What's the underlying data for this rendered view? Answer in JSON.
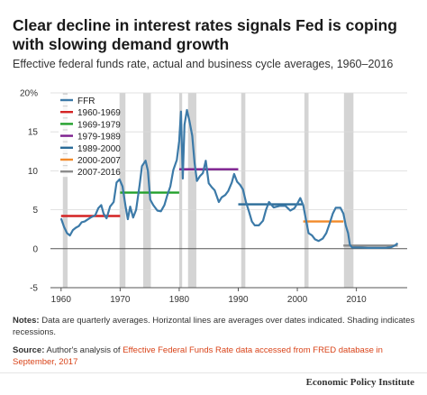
{
  "title": "Clear decline in interest rates signals Fed is coping with slowing demand growth",
  "subtitle": "Effective federal funds rate, actual and business cycle averages, 1960–2016",
  "notes": {
    "label": "Notes:",
    "text": " Data are quarterly averages. Horizontal lines are averages over dates indicated. Shading indicates recessions."
  },
  "source": {
    "label": "Source:",
    "prefix": " Author's analysis of ",
    "link_text": "Effective Federal Funds Rate data accessed from FRED database in September, 2017"
  },
  "brand": "Economic Policy Institute",
  "colors": {
    "ffr": "#3c7aa8",
    "p1960": "#d42323",
    "p1969": "#22a02c",
    "p1979": "#7c1e8e",
    "p1989": "#2a6b98",
    "p2000": "#f28a2a",
    "p2007": "#8c8c8c",
    "recession": "#d4d4d4",
    "grid": "#d9d9d9",
    "axis": "#555555"
  },
  "chart_data": {
    "type": "line",
    "xlim": [
      1958.2,
      2018.6
    ],
    "ylim": [
      -5,
      20
    ],
    "y_ticks": [
      -5,
      0,
      5,
      10,
      15,
      20
    ],
    "y_tick_labels": [
      "-5",
      "0",
      "5",
      "10",
      "15",
      "20%"
    ],
    "x_ticks": [
      1960,
      1970,
      1980,
      1990,
      2000,
      2010
    ],
    "x_tick_labels": [
      "1960",
      "1970",
      "1980",
      "1990",
      "2000",
      "2010"
    ],
    "grid": "horizontal",
    "legend_position": "top-left",
    "recessions": [
      [
        1960.3,
        1961.1
      ],
      [
        1969.9,
        1970.9
      ],
      [
        1973.9,
        1975.2
      ],
      [
        1980.0,
        1980.5
      ],
      [
        1981.5,
        1982.9
      ],
      [
        1990.5,
        1991.2
      ],
      [
        2001.2,
        2001.9
      ],
      [
        2007.9,
        2009.5
      ]
    ],
    "series": [
      {
        "name": "FFR",
        "color_key": "ffr",
        "points": [
          [
            1960.0,
            3.9
          ],
          [
            1960.5,
            2.8
          ],
          [
            1961.0,
            2.0
          ],
          [
            1961.5,
            1.7
          ],
          [
            1962.0,
            2.4
          ],
          [
            1962.5,
            2.7
          ],
          [
            1963.0,
            2.9
          ],
          [
            1963.5,
            3.4
          ],
          [
            1964.0,
            3.5
          ],
          [
            1965.0,
            4.0
          ],
          [
            1965.8,
            4.3
          ],
          [
            1966.3,
            5.2
          ],
          [
            1966.8,
            5.6
          ],
          [
            1967.2,
            4.5
          ],
          [
            1967.7,
            3.9
          ],
          [
            1968.3,
            5.4
          ],
          [
            1968.9,
            6.0
          ],
          [
            1969.4,
            8.5
          ],
          [
            1969.9,
            8.9
          ],
          [
            1970.4,
            8.0
          ],
          [
            1970.9,
            5.5
          ],
          [
            1971.3,
            3.8
          ],
          [
            1971.7,
            5.4
          ],
          [
            1972.2,
            4.0
          ],
          [
            1972.7,
            5.0
          ],
          [
            1973.3,
            8.2
          ],
          [
            1973.7,
            10.6
          ],
          [
            1974.3,
            11.3
          ],
          [
            1974.7,
            10.0
          ],
          [
            1975.1,
            6.3
          ],
          [
            1975.6,
            5.6
          ],
          [
            1976.3,
            4.9
          ],
          [
            1976.9,
            4.8
          ],
          [
            1977.5,
            5.6
          ],
          [
            1978.0,
            6.9
          ],
          [
            1978.5,
            8.0
          ],
          [
            1979.0,
            10.1
          ],
          [
            1979.6,
            11.4
          ],
          [
            1980.0,
            13.8
          ],
          [
            1980.3,
            17.6
          ],
          [
            1980.6,
            9.0
          ],
          [
            1980.9,
            15.9
          ],
          [
            1981.3,
            17.8
          ],
          [
            1981.7,
            16.5
          ],
          [
            1982.2,
            14.5
          ],
          [
            1982.6,
            11.0
          ],
          [
            1983.0,
            8.7
          ],
          [
            1983.5,
            9.3
          ],
          [
            1984.0,
            9.7
          ],
          [
            1984.5,
            11.3
          ],
          [
            1985.0,
            8.4
          ],
          [
            1985.5,
            7.9
          ],
          [
            1986.0,
            7.5
          ],
          [
            1986.7,
            6.0
          ],
          [
            1987.2,
            6.6
          ],
          [
            1987.8,
            6.9
          ],
          [
            1988.3,
            7.4
          ],
          [
            1988.9,
            8.5
          ],
          [
            1989.3,
            9.6
          ],
          [
            1989.8,
            8.6
          ],
          [
            1990.3,
            8.2
          ],
          [
            1990.8,
            7.6
          ],
          [
            1991.3,
            6.0
          ],
          [
            1991.8,
            4.8
          ],
          [
            1992.3,
            3.5
          ],
          [
            1992.8,
            3.0
          ],
          [
            1993.5,
            3.0
          ],
          [
            1994.2,
            3.6
          ],
          [
            1994.7,
            5.0
          ],
          [
            1995.2,
            6.0
          ],
          [
            1996.0,
            5.3
          ],
          [
            1997.0,
            5.5
          ],
          [
            1998.0,
            5.5
          ],
          [
            1998.8,
            4.9
          ],
          [
            1999.5,
            5.2
          ],
          [
            2000.0,
            5.8
          ],
          [
            2000.5,
            6.5
          ],
          [
            2001.0,
            5.6
          ],
          [
            2001.4,
            4.0
          ],
          [
            2001.9,
            2.0
          ],
          [
            2002.5,
            1.7
          ],
          [
            2003.0,
            1.2
          ],
          [
            2003.6,
            1.0
          ],
          [
            2004.3,
            1.3
          ],
          [
            2004.9,
            2.0
          ],
          [
            2005.5,
            3.3
          ],
          [
            2006.0,
            4.5
          ],
          [
            2006.5,
            5.25
          ],
          [
            2007.3,
            5.25
          ],
          [
            2007.8,
            4.5
          ],
          [
            2008.2,
            3.0
          ],
          [
            2008.6,
            2.0
          ],
          [
            2008.9,
            0.5
          ],
          [
            2009.3,
            0.15
          ],
          [
            2010.5,
            0.15
          ],
          [
            2012.0,
            0.1
          ],
          [
            2013.5,
            0.1
          ],
          [
            2015.0,
            0.12
          ],
          [
            2015.9,
            0.2
          ],
          [
            2016.5,
            0.4
          ],
          [
            2017.0,
            0.7
          ]
        ]
      }
    ],
    "averages": [
      {
        "name": "1960-1969",
        "color_key": "p1960",
        "x": [
          1960.0,
          1970.0
        ],
        "y": 4.2
      },
      {
        "name": "1969-1979",
        "color_key": "p1969",
        "x": [
          1970.0,
          1980.0
        ],
        "y": 7.2
      },
      {
        "name": "1979-1989",
        "color_key": "p1979",
        "x": [
          1980.0,
          1990.0
        ],
        "y": 10.2
      },
      {
        "name": "1989-2000",
        "color_key": "p1989",
        "x": [
          1990.0,
          2001.0
        ],
        "y": 5.7
      },
      {
        "name": "2000-2007",
        "color_key": "p2000",
        "x": [
          2001.0,
          2007.8
        ],
        "y": 3.5
      },
      {
        "name": "2007-2016",
        "color_key": "p2007",
        "x": [
          2007.8,
          2017.0
        ],
        "y": 0.4
      }
    ]
  }
}
